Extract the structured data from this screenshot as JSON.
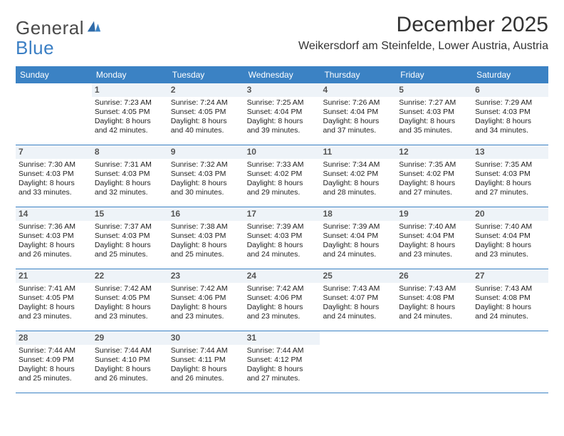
{
  "logo": {
    "textA": "General",
    "textB": "Blue"
  },
  "title": "December 2025",
  "location": "Weikersdorf am Steinfelde, Lower Austria, Austria",
  "colors": {
    "headerBar": "#3b82c4",
    "dayNumBg": "#eef3f8",
    "ruleColor": "#3b82c4",
    "text": "#222222"
  },
  "weekdays": [
    "Sunday",
    "Monday",
    "Tuesday",
    "Wednesday",
    "Thursday",
    "Friday",
    "Saturday"
  ],
  "weeks": [
    [
      null,
      {
        "n": "1",
        "sr": "Sunrise: 7:23 AM",
        "ss": "Sunset: 4:05 PM",
        "dl": "Daylight: 8 hours and 42 minutes."
      },
      {
        "n": "2",
        "sr": "Sunrise: 7:24 AM",
        "ss": "Sunset: 4:05 PM",
        "dl": "Daylight: 8 hours and 40 minutes."
      },
      {
        "n": "3",
        "sr": "Sunrise: 7:25 AM",
        "ss": "Sunset: 4:04 PM",
        "dl": "Daylight: 8 hours and 39 minutes."
      },
      {
        "n": "4",
        "sr": "Sunrise: 7:26 AM",
        "ss": "Sunset: 4:04 PM",
        "dl": "Daylight: 8 hours and 37 minutes."
      },
      {
        "n": "5",
        "sr": "Sunrise: 7:27 AM",
        "ss": "Sunset: 4:03 PM",
        "dl": "Daylight: 8 hours and 35 minutes."
      },
      {
        "n": "6",
        "sr": "Sunrise: 7:29 AM",
        "ss": "Sunset: 4:03 PM",
        "dl": "Daylight: 8 hours and 34 minutes."
      }
    ],
    [
      {
        "n": "7",
        "sr": "Sunrise: 7:30 AM",
        "ss": "Sunset: 4:03 PM",
        "dl": "Daylight: 8 hours and 33 minutes."
      },
      {
        "n": "8",
        "sr": "Sunrise: 7:31 AM",
        "ss": "Sunset: 4:03 PM",
        "dl": "Daylight: 8 hours and 32 minutes."
      },
      {
        "n": "9",
        "sr": "Sunrise: 7:32 AM",
        "ss": "Sunset: 4:03 PM",
        "dl": "Daylight: 8 hours and 30 minutes."
      },
      {
        "n": "10",
        "sr": "Sunrise: 7:33 AM",
        "ss": "Sunset: 4:02 PM",
        "dl": "Daylight: 8 hours and 29 minutes."
      },
      {
        "n": "11",
        "sr": "Sunrise: 7:34 AM",
        "ss": "Sunset: 4:02 PM",
        "dl": "Daylight: 8 hours and 28 minutes."
      },
      {
        "n": "12",
        "sr": "Sunrise: 7:35 AM",
        "ss": "Sunset: 4:02 PM",
        "dl": "Daylight: 8 hours and 27 minutes."
      },
      {
        "n": "13",
        "sr": "Sunrise: 7:35 AM",
        "ss": "Sunset: 4:03 PM",
        "dl": "Daylight: 8 hours and 27 minutes."
      }
    ],
    [
      {
        "n": "14",
        "sr": "Sunrise: 7:36 AM",
        "ss": "Sunset: 4:03 PM",
        "dl": "Daylight: 8 hours and 26 minutes."
      },
      {
        "n": "15",
        "sr": "Sunrise: 7:37 AM",
        "ss": "Sunset: 4:03 PM",
        "dl": "Daylight: 8 hours and 25 minutes."
      },
      {
        "n": "16",
        "sr": "Sunrise: 7:38 AM",
        "ss": "Sunset: 4:03 PM",
        "dl": "Daylight: 8 hours and 25 minutes."
      },
      {
        "n": "17",
        "sr": "Sunrise: 7:39 AM",
        "ss": "Sunset: 4:03 PM",
        "dl": "Daylight: 8 hours and 24 minutes."
      },
      {
        "n": "18",
        "sr": "Sunrise: 7:39 AM",
        "ss": "Sunset: 4:04 PM",
        "dl": "Daylight: 8 hours and 24 minutes."
      },
      {
        "n": "19",
        "sr": "Sunrise: 7:40 AM",
        "ss": "Sunset: 4:04 PM",
        "dl": "Daylight: 8 hours and 23 minutes."
      },
      {
        "n": "20",
        "sr": "Sunrise: 7:40 AM",
        "ss": "Sunset: 4:04 PM",
        "dl": "Daylight: 8 hours and 23 minutes."
      }
    ],
    [
      {
        "n": "21",
        "sr": "Sunrise: 7:41 AM",
        "ss": "Sunset: 4:05 PM",
        "dl": "Daylight: 8 hours and 23 minutes."
      },
      {
        "n": "22",
        "sr": "Sunrise: 7:42 AM",
        "ss": "Sunset: 4:05 PM",
        "dl": "Daylight: 8 hours and 23 minutes."
      },
      {
        "n": "23",
        "sr": "Sunrise: 7:42 AM",
        "ss": "Sunset: 4:06 PM",
        "dl": "Daylight: 8 hours and 23 minutes."
      },
      {
        "n": "24",
        "sr": "Sunrise: 7:42 AM",
        "ss": "Sunset: 4:06 PM",
        "dl": "Daylight: 8 hours and 23 minutes."
      },
      {
        "n": "25",
        "sr": "Sunrise: 7:43 AM",
        "ss": "Sunset: 4:07 PM",
        "dl": "Daylight: 8 hours and 24 minutes."
      },
      {
        "n": "26",
        "sr": "Sunrise: 7:43 AM",
        "ss": "Sunset: 4:08 PM",
        "dl": "Daylight: 8 hours and 24 minutes."
      },
      {
        "n": "27",
        "sr": "Sunrise: 7:43 AM",
        "ss": "Sunset: 4:08 PM",
        "dl": "Daylight: 8 hours and 24 minutes."
      }
    ],
    [
      {
        "n": "28",
        "sr": "Sunrise: 7:44 AM",
        "ss": "Sunset: 4:09 PM",
        "dl": "Daylight: 8 hours and 25 minutes."
      },
      {
        "n": "29",
        "sr": "Sunrise: 7:44 AM",
        "ss": "Sunset: 4:10 PM",
        "dl": "Daylight: 8 hours and 26 minutes."
      },
      {
        "n": "30",
        "sr": "Sunrise: 7:44 AM",
        "ss": "Sunset: 4:11 PM",
        "dl": "Daylight: 8 hours and 26 minutes."
      },
      {
        "n": "31",
        "sr": "Sunrise: 7:44 AM",
        "ss": "Sunset: 4:12 PM",
        "dl": "Daylight: 8 hours and 27 minutes."
      },
      null,
      null,
      null
    ]
  ]
}
